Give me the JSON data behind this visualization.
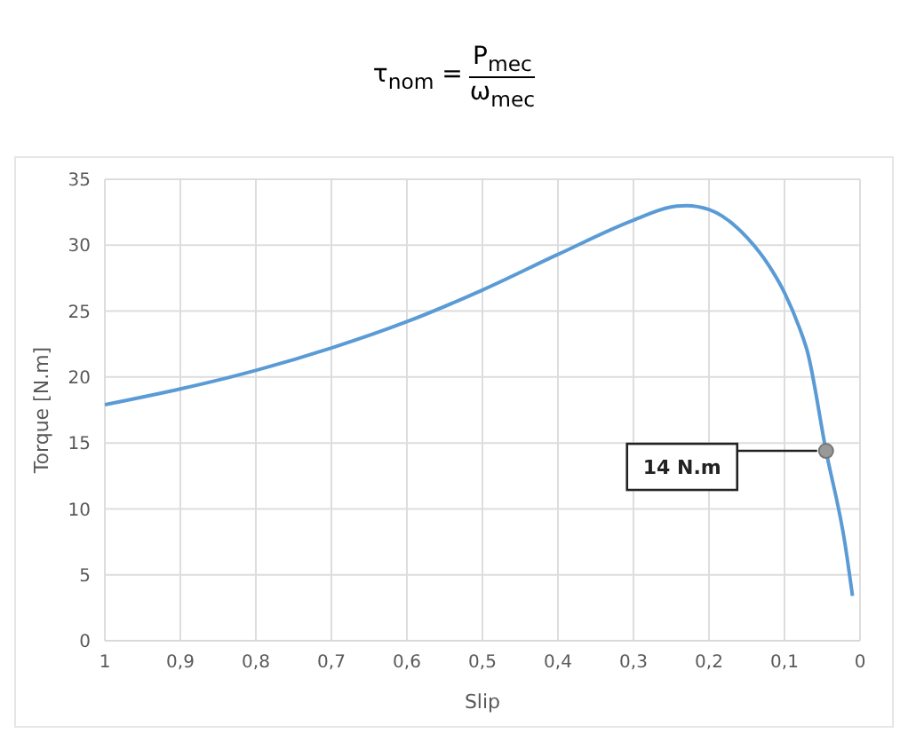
{
  "chart_data": {
    "type": "line",
    "title": "τ$_{nom}$ = P$_{mec}$ ω$_{mec}$",
    "xlabel": "Slip",
    "ylabel": "Torque [N.m]",
    "x": [
      1,
      0.9,
      0.8,
      0.7,
      0.6,
      0.5,
      0.4,
      0.3,
      0.25,
      0.23,
      0.2,
      0.15,
      0.12,
      0.1,
      0.08,
      0.07,
      0.045,
      0.02,
      0.01
    ],
    "series": [
      {
        "color": "#5b9bd5",
        "values": [
          17.9,
          19.1,
          20.5,
          22.2,
          24.2,
          26.6,
          29.3,
          31.9,
          32.9,
          33.0,
          32.7,
          30.6,
          28.4,
          26.4,
          23.7,
          22.0,
          14.4,
          7.4,
          3.4
        ]
      },
      {
        "type": "scatter",
        "color": "#999999",
        "x": [
          0.045
        ],
        "values": [
          14.4
        ]
      }
    ],
    "xlim": [
      1,
      0
    ],
    "xticks": [
      1,
      {
        "value": 0.9,
        "label": "0,9"
      },
      {
        "value": 0.8,
        "label": "0,8"
      },
      {
        "value": 0.7,
        "label": "0,7"
      },
      {
        "value": 0.6,
        "label": "0,6"
      },
      {
        "value": 0.5,
        "label": "0,5"
      },
      {
        "value": 0.4,
        "label": "0,4"
      },
      {
        "value": 0.3,
        "label": "0,3"
      },
      {
        "value": 0.2,
        "label": "0,2"
      },
      {
        "value": 0.1,
        "label": "0,1"
      },
      0
    ],
    "ylim": [
      0,
      35
    ],
    "yticks": [
      0,
      5,
      10,
      15,
      20,
      25,
      30,
      35
    ],
    "grid": true,
    "line_style": "solid",
    "annotations": [
      {
        "text": "14 N.m",
        "x": 0.045,
        "y": 14.4
      }
    ]
  }
}
